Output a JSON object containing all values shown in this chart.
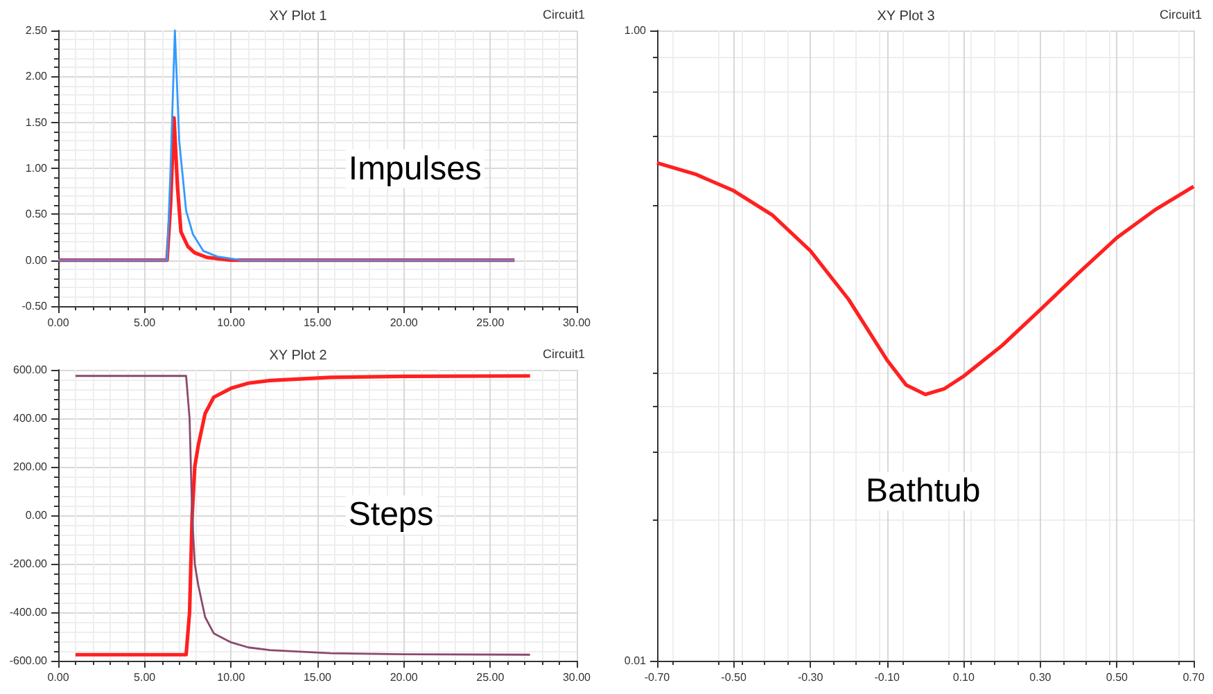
{
  "chart_data": [
    {
      "type": "line",
      "title": "XY Plot 1",
      "annotations": [
        "Circuit1",
        "Impulses"
      ],
      "grid": true,
      "xlim": [
        0,
        30
      ],
      "xticks": [
        {
          "value": 0,
          "label": "0.00"
        },
        {
          "value": 5,
          "label": "5.00"
        },
        {
          "value": 10,
          "label": "10.00"
        },
        {
          "value": 15,
          "label": "15.00"
        },
        {
          "value": 20,
          "label": "20.00"
        },
        {
          "value": 25,
          "label": "25.00"
        },
        {
          "value": 30,
          "label": "30.00"
        }
      ],
      "ylim": [
        -0.5,
        2.5
      ],
      "yticks": [
        {
          "value": -0.5,
          "label": "-0.50"
        },
        {
          "value": 0,
          "label": "0.00"
        },
        {
          "value": 0.5,
          "label": "0.50"
        },
        {
          "value": 1,
          "label": "1.00"
        },
        {
          "value": 1.5,
          "label": "1.50"
        },
        {
          "value": 2,
          "label": "2.00"
        },
        {
          "value": 2.5,
          "label": "2.50"
        }
      ],
      "series": [
        {
          "color": "#ff2020",
          "x": [
            0,
            6.3,
            6.5,
            6.7,
            6.9,
            7.1,
            7.5,
            7.9,
            8.6,
            10,
            15,
            20,
            26.4
          ],
          "values": [
            0,
            0,
            0.6,
            1.55,
            0.8,
            0.31,
            0.15,
            0.08,
            0.03,
            0,
            0,
            0,
            0
          ]
        },
        {
          "color": "#3399ff",
          "x": [
            0,
            6.3,
            6.5,
            6.75,
            7.0,
            7.4,
            7.8,
            8.4,
            9.2,
            10.6,
            15,
            20,
            26.4
          ],
          "values": [
            0,
            0,
            1.0,
            2.5,
            1.3,
            0.54,
            0.28,
            0.1,
            0.04,
            0,
            0,
            0,
            0
          ]
        }
      ]
    },
    {
      "type": "line",
      "title": "XY Plot 2",
      "annotations": [
        "Circuit1",
        "Steps"
      ],
      "grid": true,
      "xlim": [
        0,
        30
      ],
      "xticks": [
        {
          "value": 0,
          "label": "0.00"
        },
        {
          "value": 5,
          "label": "5.00"
        },
        {
          "value": 10,
          "label": "10.00"
        },
        {
          "value": 15,
          "label": "15.00"
        },
        {
          "value": 20,
          "label": "20.00"
        },
        {
          "value": 25,
          "label": "25.00"
        },
        {
          "value": 30,
          "label": "30.00"
        }
      ],
      "ylim": [
        -600,
        600
      ],
      "yticks": [
        {
          "value": -600,
          "label": "-600.00"
        },
        {
          "value": -400,
          "label": "-400.00"
        },
        {
          "value": -200,
          "label": "-200.00"
        },
        {
          "value": 0,
          "label": "0.00"
        },
        {
          "value": 200,
          "label": "200.00"
        },
        {
          "value": 400,
          "label": "400.00"
        },
        {
          "value": 600,
          "label": "600.00"
        }
      ],
      "series": [
        {
          "color": "#ff2020",
          "x": [
            1,
            7.4,
            7.6,
            7.75,
            7.9,
            8.1,
            8.5,
            9.0,
            10,
            11,
            12.25,
            15.75,
            20,
            27.3
          ],
          "values": [
            -575,
            -575,
            -400,
            0,
            200,
            287,
            420,
            487,
            524,
            545,
            556,
            569,
            573,
            575
          ]
        },
        {
          "color": "#8b4a6b",
          "x": [
            1,
            7.4,
            7.6,
            7.75,
            7.9,
            8.1,
            8.5,
            9.0,
            10,
            11,
            12.25,
            15.75,
            20,
            27.3
          ],
          "values": [
            575,
            575,
            400,
            0,
            -200,
            -287,
            -420,
            -487,
            -524,
            -545,
            -556,
            -569,
            -573,
            -575
          ]
        }
      ]
    },
    {
      "type": "line",
      "title": "XY Plot 3",
      "annotations": [
        "Circuit1",
        "Bathtub"
      ],
      "grid": true,
      "log": "y",
      "xlim": [
        -0.7,
        0.7
      ],
      "xticks": [
        {
          "value": -0.7,
          "label": "-0.70"
        },
        {
          "value": -0.5,
          "label": "-0.50"
        },
        {
          "value": -0.3,
          "label": "-0.30"
        },
        {
          "value": -0.1,
          "label": "-0.10"
        },
        {
          "value": 0.1,
          "label": "0.10"
        },
        {
          "value": 0.3,
          "label": "0.30"
        },
        {
          "value": 0.5,
          "label": "0.50"
        },
        {
          "value": 0.7,
          "label": "0.70"
        }
      ],
      "ylim": [
        0.01,
        1
      ],
      "yticks": [
        {
          "value": 0.01,
          "label": "0.01"
        },
        {
          "value": 1,
          "label": "1.00"
        }
      ],
      "series": [
        {
          "color": "#ff2020",
          "x": [
            -0.7,
            -0.6,
            -0.5,
            -0.4,
            -0.3,
            -0.2,
            -0.1,
            -0.05,
            0,
            0.05,
            0.1,
            0.2,
            0.3,
            0.4,
            0.5,
            0.6,
            0.7
          ],
          "values": [
            0.38,
            0.35,
            0.31,
            0.26,
            0.2,
            0.14,
            0.09,
            0.075,
            0.07,
            0.073,
            0.08,
            0.1,
            0.13,
            0.17,
            0.22,
            0.27,
            0.32
          ]
        }
      ]
    }
  ]
}
